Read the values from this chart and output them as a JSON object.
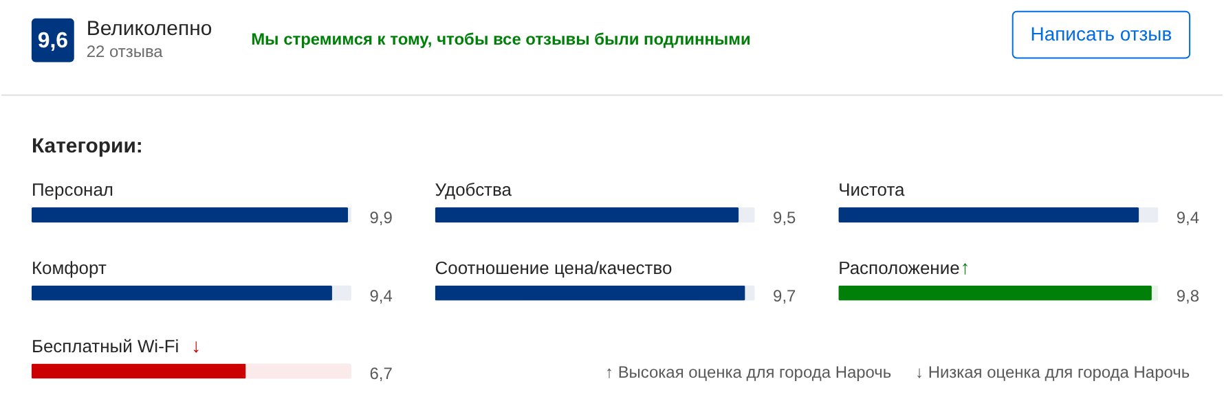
{
  "chart_data": [
    {
      "type": "bar",
      "orientation": "horizontal",
      "title": "Категории:",
      "categories": [
        "Персонал",
        "Комфорт",
        "Бесплатный Wi-Fi"
      ],
      "values": [
        9.9,
        9.4,
        6.7
      ],
      "value_labels": [
        "9,9",
        "9,4",
        "6,7"
      ],
      "colors": [
        "#003580",
        "#003580",
        "#cc0000"
      ],
      "tick_labels": false,
      "annotations": [
        "9,6",
        "Великолепно",
        "22 отзыва",
        "Мы стремимся к тому, чтобы все отзывы были подлинными",
        "Написать отзыв",
        "↓"
      ]
    },
    {
      "type": "bar",
      "orientation": "horizontal",
      "categories": [
        "Удобства",
        "Соотношение цена/качество"
      ],
      "values": [
        9.5,
        9.7
      ],
      "value_labels": [
        "9,5",
        "9,7"
      ],
      "colors": [
        "#003580",
        "#003580"
      ],
      "tick_labels": false
    },
    {
      "type": "bar",
      "orientation": "horizontal",
      "categories": [
        "Чистота",
        "Расположение"
      ],
      "values": [
        9.4,
        9.8
      ],
      "value_labels": [
        "9,4",
        "9,8"
      ],
      "colors": [
        "#003580",
        "#008009"
      ],
      "tick_labels": false,
      "annotations": [
        "↑",
        "↑ Высокая оценка для города Нарочь",
        "↓ Низкая оценка для города Нарочь"
      ]
    }
  ]
}
